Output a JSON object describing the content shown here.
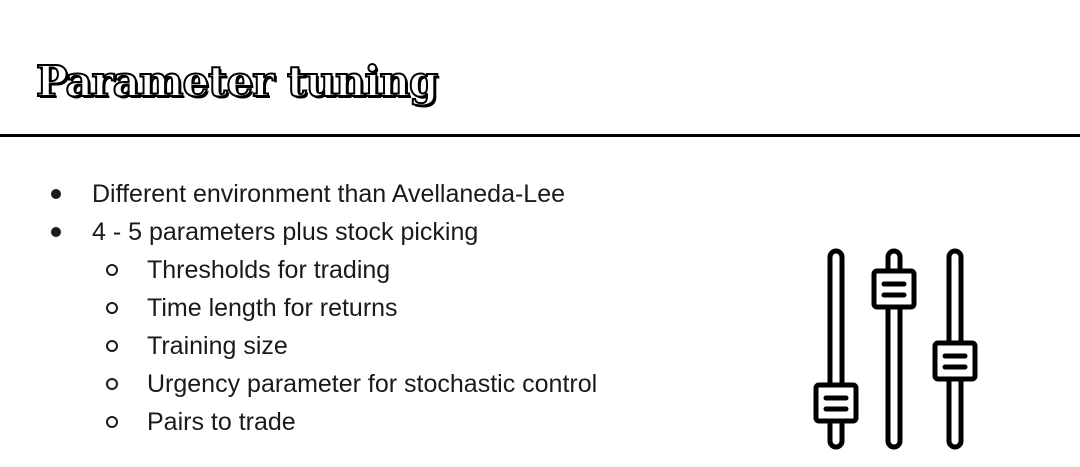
{
  "slide": {
    "title": "Parameter tuning",
    "bullets": [
      {
        "level": 1,
        "text": "Different environment than Avellaneda-Lee"
      },
      {
        "level": 1,
        "text": "4 - 5 parameters plus stock picking"
      },
      {
        "level": 2,
        "text": "Thresholds for trading"
      },
      {
        "level": 2,
        "text": "Time length for returns"
      },
      {
        "level": 2,
        "text": "Training size"
      },
      {
        "level": 2,
        "text": "Urgency parameter for stochastic control"
      },
      {
        "level": 2,
        "text": "Pairs to trade"
      }
    ]
  },
  "icons": {
    "sliders": "sliders-icon"
  },
  "colors": {
    "text": "#1a1a1a",
    "rule": "#000000",
    "background": "#ffffff"
  }
}
